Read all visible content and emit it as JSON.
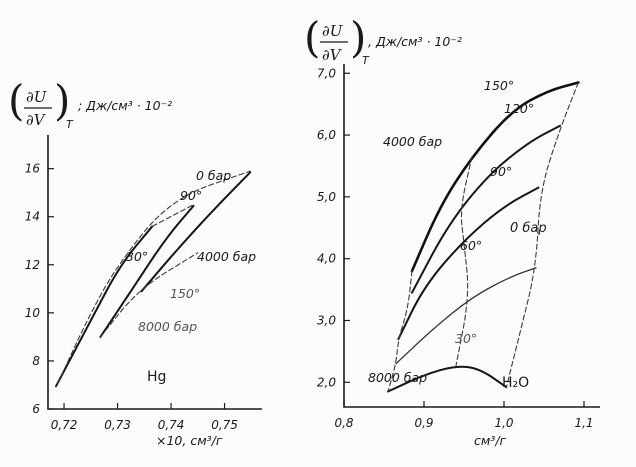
{
  "chart_data": [
    {
      "type": "line",
      "ylabel_frac_num": "∂U",
      "ylabel_frac_den": "∂V",
      "ylabel_subscript": "T",
      "ylabel_unit": "; Дж/см³ · 10⁻²",
      "xlabel": "×10, см³/г",
      "substance": "Hg",
      "xlim": [
        0.717,
        0.757
      ],
      "ylim": [
        6,
        17.4
      ],
      "x_ticks": [
        "0,72",
        "0,73",
        "0,74",
        "0,75"
      ],
      "y_ticks": [
        "6",
        "8",
        "10",
        "12",
        "14",
        "16"
      ],
      "x_tick_values": [
        0.72,
        0.73,
        0.74,
        0.75
      ],
      "y_tick_values": [
        6,
        8,
        10,
        12,
        14,
        16
      ],
      "series": [
        {
          "name": "30°",
          "style": "solid",
          "points": [
            [
              0.7185,
              6.95
            ],
            [
              0.7248,
              9.6
            ],
            [
              0.7305,
              12.0
            ],
            [
              0.7365,
              13.6
            ]
          ]
        },
        {
          "name": "90°",
          "style": "solid",
          "points": [
            [
              0.7268,
              9.0
            ],
            [
              0.7325,
              10.9
            ],
            [
              0.739,
              13.1
            ],
            [
              0.7442,
              14.45
            ]
          ]
        },
        {
          "name": "150°",
          "style": "solid",
          "points": [
            [
              0.7345,
              10.9
            ],
            [
              0.741,
              12.6
            ],
            [
              0.748,
              14.3
            ],
            [
              0.7548,
              15.85
            ]
          ]
        },
        {
          "name": "0 бар",
          "style": "dashed",
          "points": [
            [
              0.7188,
              7.05
            ],
            [
              0.7245,
              9.8
            ],
            [
              0.73,
              12.0
            ],
            [
              0.74,
              14.75
            ],
            [
              0.7548,
              15.9
            ]
          ]
        },
        {
          "name": "4000 бар",
          "style": "dashed",
          "points": [
            [
              0.7365,
              13.6
            ],
            [
              0.7442,
              14.5
            ]
          ]
        },
        {
          "name": "8000 бар",
          "style": "dashed",
          "points": [
            [
              0.7268,
              9.0
            ],
            [
              0.734,
              11.0
            ],
            [
              0.745,
              12.5
            ]
          ]
        }
      ],
      "annotations": [
        "0 бар",
        "90°",
        "30°",
        "4000 бар",
        "150°",
        "8000 бар",
        "Hg"
      ]
    },
    {
      "type": "line",
      "ylabel_frac_num": "∂U",
      "ylabel_frac_den": "∂V",
      "ylabel_subscript": "T",
      "ylabel_unit": ", Дж/см³ · 10⁻²",
      "xlabel": "см³/г",
      "substance": "H₂O",
      "xlim": [
        0.8,
        1.12
      ],
      "ylim": [
        1.6,
        7.15
      ],
      "x_ticks": [
        "0,8",
        "0,9",
        "1,0",
        "1,1"
      ],
      "y_ticks": [
        "2,0",
        "3,0",
        "4,0",
        "5,0",
        "6,0",
        "7,0"
      ],
      "x_tick_values": [
        0.8,
        0.9,
        1.0,
        1.1
      ],
      "y_tick_values": [
        2.0,
        3.0,
        4.0,
        5.0,
        6.0,
        7.0
      ],
      "series": [
        {
          "name": "30°",
          "style": "solid",
          "points": [
            [
              0.855,
              1.85
            ],
            [
              0.9,
              2.12
            ],
            [
              0.94,
              2.27
            ],
            [
              0.97,
              2.22
            ],
            [
              1.003,
              1.92
            ]
          ]
        },
        {
          "name": "60°",
          "style": "thin",
          "points": [
            [
              0.865,
              2.3
            ],
            [
              0.91,
              2.85
            ],
            [
              0.96,
              3.38
            ],
            [
              1.01,
              3.72
            ],
            [
              1.04,
              3.85
            ]
          ]
        },
        {
          "name": "90°",
          "style": "solid",
          "points": [
            [
              0.868,
              2.7
            ],
            [
              0.9,
              3.55
            ],
            [
              0.95,
              4.3
            ],
            [
              1.0,
              4.85
            ],
            [
              1.043,
              5.15
            ]
          ]
        },
        {
          "name": "120°",
          "style": "solid",
          "points": [
            [
              0.885,
              3.45
            ],
            [
              0.93,
              4.55
            ],
            [
              0.98,
              5.35
            ],
            [
              1.03,
              5.88
            ],
            [
              1.07,
              6.15
            ]
          ]
        },
        {
          "name": "150°",
          "style": "bold",
          "points": [
            [
              0.885,
              3.8
            ],
            [
              0.92,
              4.85
            ],
            [
              0.96,
              5.65
            ],
            [
              1.01,
              6.4
            ],
            [
              1.055,
              6.72
            ],
            [
              1.093,
              6.85
            ]
          ]
        },
        {
          "name": "0 бар",
          "style": "dashed",
          "points": [
            [
              1.093,
              6.85
            ],
            [
              1.07,
              6.1
            ],
            [
              1.045,
              5.1
            ],
            [
              1.04,
              3.85
            ],
            [
              1.02,
              2.8
            ],
            [
              1.003,
              1.92
            ]
          ]
        },
        {
          "name": "4000 бар",
          "style": "dashed",
          "points": [
            [
              0.96,
              5.65
            ],
            [
              0.945,
              4.8
            ],
            [
              0.95,
              4.25
            ],
            [
              0.957,
              3.4
            ],
            [
              0.94,
              2.27
            ]
          ]
        },
        {
          "name": "8000 бар",
          "style": "dashed",
          "points": [
            [
              0.885,
              3.8
            ],
            [
              0.88,
              3.2
            ],
            [
              0.868,
              2.7
            ],
            [
              0.865,
              2.3
            ],
            [
              0.855,
              1.85
            ]
          ]
        }
      ],
      "annotations": [
        "150°",
        "120°",
        "4000 бар",
        "90°",
        "0 бар",
        "60°",
        "30°",
        "8000 бар",
        "H₂O"
      ]
    }
  ]
}
